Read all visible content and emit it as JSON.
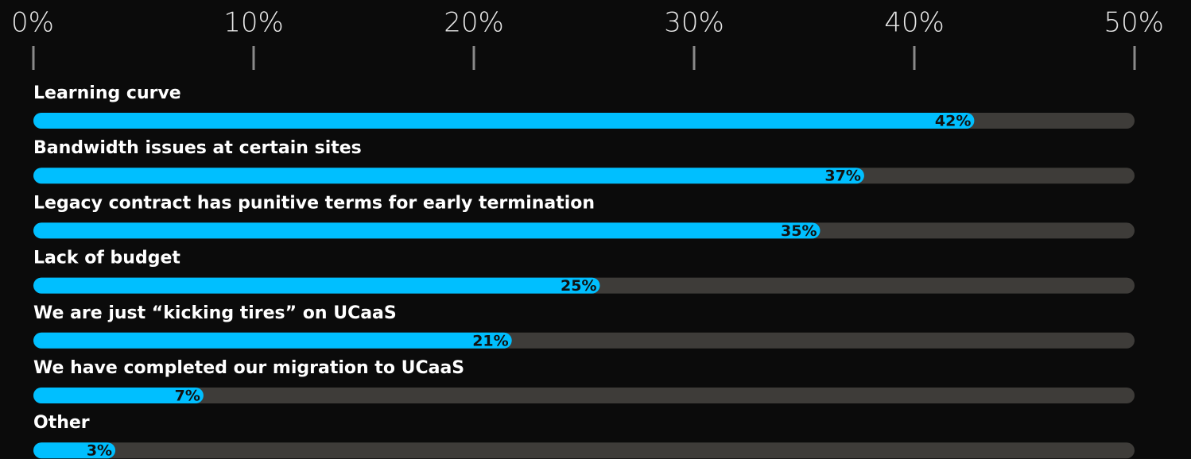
{
  "chart_data": {
    "type": "bar",
    "orientation": "horizontal",
    "categories": [
      "Learning curve",
      "Bandwidth issues at certain sites",
      "Legacy contract has punitive terms for early termination",
      "Lack of budget",
      "We are just “kicking tires” on UCaaS",
      "We have completed our migration to UCaaS",
      "Other"
    ],
    "values": [
      42,
      37,
      35,
      25,
      21,
      7,
      3
    ],
    "value_labels": [
      "42%",
      "37%",
      "35%",
      "25%",
      "21%",
      "7%",
      "3%"
    ],
    "color": "#00bfff",
    "xlim": [
      0,
      50
    ],
    "xticks": [
      {
        "value": 0,
        "label": "0%"
      },
      {
        "value": 10,
        "label": "10%"
      },
      {
        "value": 20,
        "label": "20%"
      },
      {
        "value": 30,
        "label": "30%"
      },
      {
        "value": 40,
        "label": "40%"
      },
      {
        "value": 50,
        "label": "50%"
      }
    ]
  }
}
